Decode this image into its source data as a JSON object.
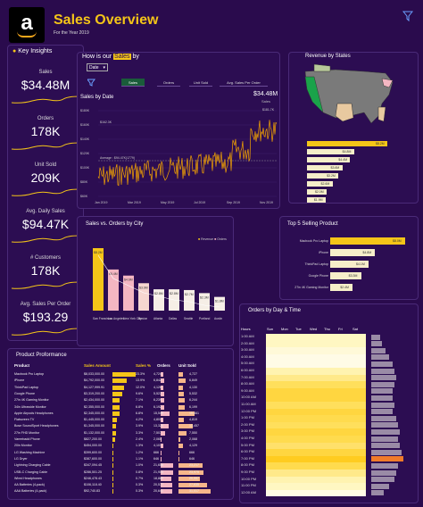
{
  "header": {
    "title": "Sales Overview",
    "subtitle": "For the Year 2019",
    "logo_letter": "a"
  },
  "insights": {
    "title": "Key Insights",
    "kpis": [
      {
        "label": "Sales",
        "value": "$34.48M"
      },
      {
        "label": "Orders",
        "value": "178K"
      },
      {
        "label": "Unit Sold",
        "value": "209K"
      },
      {
        "label": "Avg. Daily Sales",
        "value": "$94.47K"
      },
      {
        "label": "# Customers",
        "value": "178K"
      },
      {
        "label": "Avg. Sales Per Order",
        "value": "$193.29"
      }
    ]
  },
  "trend": {
    "title_prefix": "How is our",
    "title_hl": "Sales",
    "title_suffix": "by",
    "dropdown": "Date",
    "tabs": [
      "Sales",
      "Orders",
      "Unit Sold",
      "Avg. Sales Per Order"
    ],
    "chart_title": "Sales by Date",
    "total": "$34.48M",
    "total_label": "Sales",
    "max_label": "$162.3K",
    "avg_label": "Average : $94.47K(1779)",
    "peak_label": "$181.7K",
    "y_ticks": [
      "$180K",
      "$160K",
      "$140K",
      "$120K",
      "$100K",
      "$80K",
      "$60K"
    ],
    "x_ticks": [
      "Jan 2019",
      "Mar 2019",
      "May 2019",
      "Jul 2019",
      "Sep 2019",
      "Nov 2019"
    ]
  },
  "map": {
    "title": "Revenue by States",
    "bars": [
      "$8.2M",
      "$4.8M",
      "$4.4M",
      "$3.6M",
      "$3.2M",
      "$2.6M",
      "$2.0M",
      "$1.9M"
    ]
  },
  "city": {
    "title": "Sales vs. Orders by City",
    "legend": [
      "Revenue",
      "Orders"
    ],
    "bars": [
      {
        "city": "San Francisco",
        "label": "$8.2M",
        "v": 8.2
      },
      {
        "city": "Los Angeles",
        "label": "$5.4M",
        "v": 5.4
      },
      {
        "city": "New York City",
        "label": "$4.6M",
        "v": 4.6
      },
      {
        "city": "Boston",
        "label": "$3.6M",
        "v": 3.6
      },
      {
        "city": "Atlanta",
        "label": "$2.8M",
        "v": 2.8
      },
      {
        "city": "Dallas",
        "label": "$2.8M",
        "v": 2.8
      },
      {
        "city": "Seattle",
        "label": "$2.7M",
        "v": 2.7
      },
      {
        "city": "Portland",
        "label": "$2.3M",
        "v": 2.3
      },
      {
        "city": "Austin",
        "label": "$1.8M",
        "v": 1.8
      }
    ]
  },
  "top5": {
    "title": "Top 5 Selling Product",
    "items": [
      {
        "name": "Macbook Pro Laptop",
        "label": "$8.0M",
        "v": 8.0
      },
      {
        "name": "iPhone",
        "label": "$4.8M",
        "v": 4.8
      },
      {
        "name": "ThinkPad Laptop",
        "label": "$4.1M",
        "v": 4.1
      },
      {
        "name": "Google Phone",
        "label": "$3.3M",
        "v": 3.3
      },
      {
        "name": "27in 4K Gaming Monitor",
        "label": "$2.4M",
        "v": 2.4
      }
    ]
  },
  "heat": {
    "title": "Orders by Day & Time",
    "hours_label": "Hours",
    "days": [
      "Sun",
      "Mon",
      "Tue",
      "Wed",
      "Thu",
      "Fri",
      "Sat"
    ],
    "hours": [
      "1:00 AM",
      "2:00 AM",
      "3:00 AM",
      "4:00 AM",
      "5:00 AM",
      "6:00 AM",
      "7:00 AM",
      "8:00 AM",
      "9:00 AM",
      "10:00 AM",
      "11:00 AM",
      "12:00 PM",
      "1:00 PM",
      "2:00 PM",
      "3:00 PM",
      "4:00 PM",
      "5:00 PM",
      "6:00 PM",
      "7:00 PM",
      "8:00 PM",
      "9:00 PM",
      "10:00 PM",
      "11:00 PM",
      "12:00 AM"
    ]
  },
  "products": {
    "title": "Product Proformance",
    "headers": [
      "Product",
      "Sales Amount",
      "Sales %",
      "Orders",
      "Unit Sold"
    ],
    "rows": [
      [
        "Macbook Pro Laptop",
        "$8,033,000.00",
        "23.3%",
        "4,724",
        "4,727"
      ],
      [
        "iPhone",
        "$4,792,000.00",
        "13.9%",
        "6,842",
        "6,849"
      ],
      [
        "ThinkPad Laptop",
        "$4,127,999.91",
        "12.0%",
        "4,126",
        "4,130"
      ],
      [
        "Google Phone",
        "$3,319,200.00",
        "9.6%",
        "5,522",
        "5,532"
      ],
      [
        "27in 4K Gaming Monitor",
        "$2,434,000.00",
        "7.1%",
        "6,239",
        "6,244"
      ],
      [
        "34in Ultrawide Monitor",
        "$2,355,000.00",
        "6.8%",
        "6,192",
        "6,199"
      ],
      [
        "Apple Airpods Headphones",
        "$2,345,000.00",
        "6.8%",
        "15,549",
        "15,661"
      ],
      [
        "Flatscreen TV",
        "$1,445,000.00",
        "4.2%",
        "4,800",
        "4,819"
      ],
      [
        "Bose SoundSport Headphones",
        "$1,345,000.00",
        "3.9%",
        "13,325",
        "13,457"
      ],
      [
        "27in FHD Monitor",
        "$1,132,000.00",
        "3.3%",
        "7,507",
        "7,550"
      ],
      [
        "Vareebadd Phone",
        "$827,200.00",
        "2.4%",
        "2,065",
        "2,068"
      ],
      [
        "20in Monitor",
        "$454,000.00",
        "1.3%",
        "4,101",
        "4,129"
      ],
      [
        "LG Washing Machine",
        "$399,600.00",
        "1.2%",
        "666",
        "666"
      ],
      [
        "LG Dryer",
        "$387,600.00",
        "1.1%",
        "646",
        "646"
      ],
      [
        "Lightning Charging Cable",
        "$347,094.45",
        "1.0%",
        "21,658",
        "23,217"
      ],
      [
        "USB-C Charging Cable",
        "$286,501.25",
        "0.8%",
        "21,903",
        "23,975"
      ],
      [
        "Wired Headphones",
        "$246,478.43",
        "0.7%",
        "18,882",
        "20,557"
      ],
      [
        "AA Batteries (4-pack)",
        "$106,118.40",
        "0.3%",
        "20,577",
        "27,635"
      ],
      [
        "AAA Batteries (4-pack)",
        "$92,740.83",
        "0.3%",
        "20,641",
        "31,017"
      ]
    ]
  },
  "colors": {
    "bg": "#2a0b4d",
    "accent": "#f5c518",
    "panel": "#2c0d52"
  }
}
